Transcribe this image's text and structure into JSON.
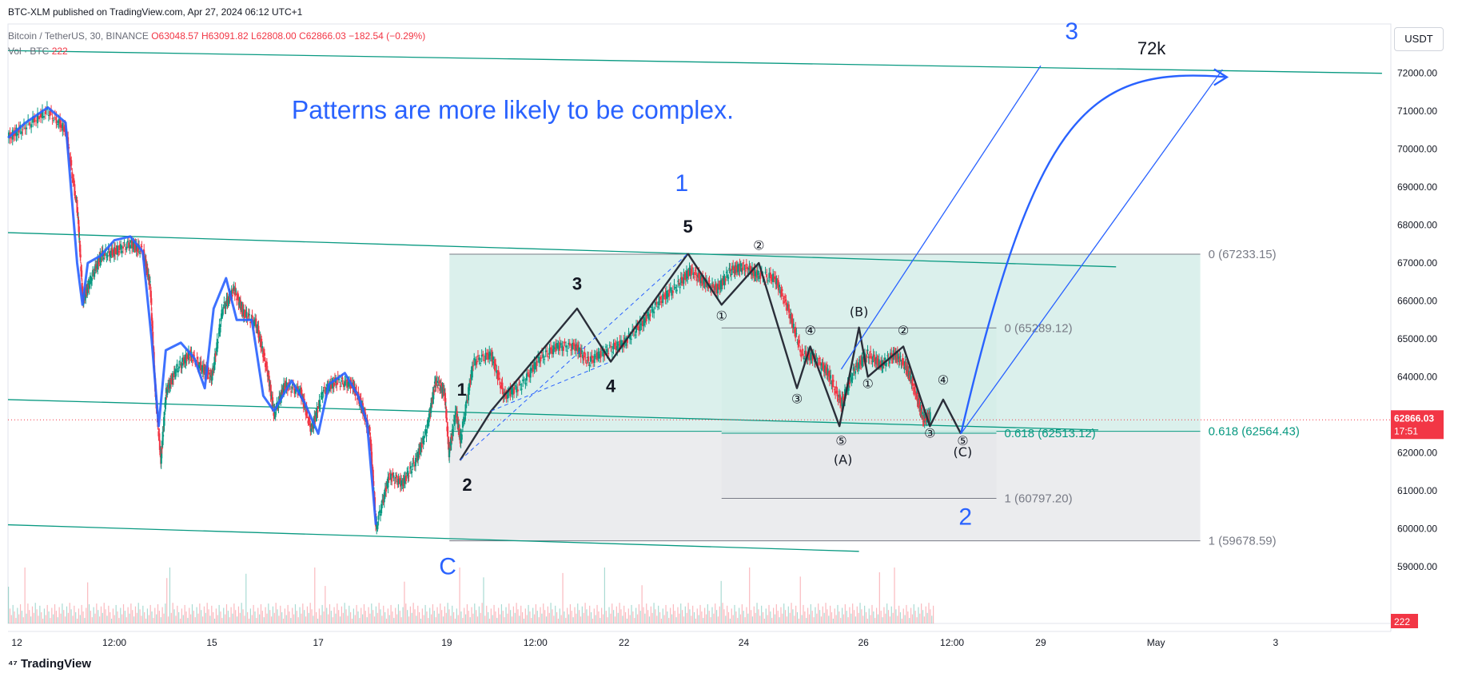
{
  "header": {
    "published": "BTC-XLM published on TradingView.com, Apr 27, 2024 06:12 UTC+1",
    "symbol": "Bitcoin / TetherUS, 30, BINANCE",
    "ohlc": {
      "o": "O63048.57",
      "h": "H63091.82",
      "l": "L62808.00",
      "c": "C62866.03",
      "chg": "−182.54 (−0.29%)"
    },
    "volume_label": "Vol · BTC",
    "volume_value": "222"
  },
  "unit_button": "USDT",
  "brand": "TradingView",
  "colors": {
    "accent_blue": "#2962ff",
    "wave_black": "#2a2e39",
    "channel": "#089981",
    "fib_fill": "#d5ede9",
    "fib_grey": "#e6e7ea",
    "candle_up": "#089981",
    "candle_down": "#f23645",
    "price_tag": "#f23645"
  },
  "chart_data": {
    "type": "candlestick",
    "title": "Bitcoin / TetherUS, 30, BINANCE",
    "ylim": [
      57500,
      73300
    ],
    "xlim": [
      0,
      15.6
    ],
    "x_ticks": [
      {
        "x": 0.1,
        "label": "12"
      },
      {
        "x": 1.2,
        "label": "12:00"
      },
      {
        "x": 2.3,
        "label": "15"
      },
      {
        "x": 3.5,
        "label": "17"
      },
      {
        "x": 4.95,
        "label": "19"
      },
      {
        "x": 5.95,
        "label": "12:00"
      },
      {
        "x": 6.95,
        "label": "22"
      },
      {
        "x": 8.3,
        "label": "24"
      },
      {
        "x": 9.65,
        "label": "26"
      },
      {
        "x": 10.65,
        "label": "12:00"
      },
      {
        "x": 11.65,
        "label": "29"
      },
      {
        "x": 12.95,
        "label": "May"
      },
      {
        "x": 14.3,
        "label": "3"
      }
    ],
    "y_ticks": [
      59000,
      60000,
      61000,
      62000,
      63000,
      64000,
      65000,
      66000,
      67000,
      68000,
      69000,
      70000,
      71000,
      72000
    ],
    "y_tick_labels": [
      "59000.00",
      "60000.00",
      "61000.00",
      "62000.00",
      "63000.00",
      "64000.00",
      "65000.00",
      "66000.00",
      "67000.00",
      "68000.00",
      "69000.00",
      "70000.00",
      "71000.00",
      "72000.00"
    ],
    "price_path": [
      [
        0,
        70300
      ],
      [
        0.2,
        70600
      ],
      [
        0.45,
        71000
      ],
      [
        0.65,
        70500
      ],
      [
        0.78,
        68400
      ],
      [
        0.84,
        66000
      ],
      [
        0.92,
        66500
      ],
      [
        1.05,
        67200
      ],
      [
        1.2,
        67300
      ],
      [
        1.38,
        67500
      ],
      [
        1.52,
        67300
      ],
      [
        1.6,
        66400
      ],
      [
        1.66,
        63500
      ],
      [
        1.72,
        61800
      ],
      [
        1.78,
        63600
      ],
      [
        1.9,
        64200
      ],
      [
        2.05,
        64600
      ],
      [
        2.2,
        64200
      ],
      [
        2.3,
        64000
      ],
      [
        2.42,
        65800
      ],
      [
        2.55,
        66300
      ],
      [
        2.65,
        65700
      ],
      [
        2.8,
        65400
      ],
      [
        2.92,
        64200
      ],
      [
        3.0,
        63000
      ],
      [
        3.12,
        63800
      ],
      [
        3.3,
        63600
      ],
      [
        3.42,
        62600
      ],
      [
        3.55,
        63600
      ],
      [
        3.7,
        63900
      ],
      [
        3.88,
        63800
      ],
      [
        3.98,
        63300
      ],
      [
        4.08,
        62500
      ],
      [
        4.15,
        60000
      ],
      [
        4.3,
        61400
      ],
      [
        4.45,
        61200
      ],
      [
        4.6,
        61800
      ],
      [
        4.72,
        62600
      ],
      [
        4.82,
        63900
      ],
      [
        4.92,
        63600
      ],
      [
        4.97,
        62000
      ],
      [
        5.05,
        63100
      ],
      [
        5.1,
        62300
      ],
      [
        5.25,
        64400
      ],
      [
        5.45,
        64600
      ],
      [
        5.6,
        63500
      ],
      [
        5.8,
        63800
      ],
      [
        6.0,
        64500
      ],
      [
        6.2,
        64800
      ],
      [
        6.4,
        64800
      ],
      [
        6.55,
        64400
      ],
      [
        6.75,
        64700
      ],
      [
        6.95,
        64900
      ],
      [
        7.15,
        65400
      ],
      [
        7.35,
        66000
      ],
      [
        7.55,
        66400
      ],
      [
        7.7,
        66800
      ],
      [
        7.85,
        66500
      ],
      [
        8.0,
        66300
      ],
      [
        8.15,
        66800
      ],
      [
        8.3,
        66900
      ],
      [
        8.45,
        66700
      ],
      [
        8.65,
        66600
      ],
      [
        8.8,
        65800
      ],
      [
        8.95,
        64600
      ],
      [
        9.1,
        64500
      ],
      [
        9.25,
        64100
      ],
      [
        9.4,
        63300
      ],
      [
        9.55,
        64200
      ],
      [
        9.7,
        64600
      ],
      [
        9.85,
        64300
      ],
      [
        10.0,
        64600
      ],
      [
        10.12,
        64300
      ],
      [
        10.22,
        63700
      ],
      [
        10.32,
        62900
      ],
      [
        10.4,
        62950
      ]
    ],
    "volume_profile": "volume bars along bottom, recent value 222",
    "last_price": {
      "value": 62866.03,
      "label": "62866.03",
      "countdown": "17:51"
    },
    "last_volume_label": "222",
    "channels": [
      {
        "from": [
          0,
          72600
        ],
        "to": [
          15.5,
          72000
        ]
      },
      {
        "from": [
          0,
          67800
        ],
        "to": [
          12.5,
          66900
        ]
      },
      {
        "from": [
          0,
          63400
        ],
        "to": [
          12.3,
          62600
        ]
      },
      {
        "from": [
          0,
          60100
        ],
        "to": [
          9.6,
          59400
        ]
      }
    ],
    "fib_large": {
      "x_range": [
        4.98,
        13.45
      ],
      "levels": [
        {
          "ratio": "0",
          "price": 67233.15,
          "label": "0 (67233.15)"
        },
        {
          "ratio": "0.618",
          "price": 62564.43,
          "label": "0.618 (62564.43)"
        },
        {
          "ratio": "1",
          "price": 59678.59,
          "label": "1 (59678.59)"
        }
      ]
    },
    "fib_small": {
      "x_range": [
        8.05,
        11.15
      ],
      "levels": [
        {
          "ratio": "0",
          "price": 65289.12,
          "label": "0 (65289.12)"
        },
        {
          "ratio": "0.618",
          "price": 62513.12,
          "label": "0.618 (62513.12)"
        },
        {
          "ratio": "1",
          "price": 60797.2,
          "label": "1 (60797.20)"
        }
      ]
    },
    "impulse_wave": {
      "points": [
        [
          5.1,
          61800
        ],
        [
          5.45,
          63100
        ],
        [
          6.42,
          65800
        ],
        [
          6.8,
          64400
        ],
        [
          7.67,
          67250
        ]
      ],
      "labels": [
        {
          "x": 5.12,
          "y": 63500,
          "text": "1"
        },
        {
          "x": 5.18,
          "y": 61000,
          "text": "2"
        },
        {
          "x": 6.42,
          "y": 66300,
          "text": "3"
        },
        {
          "x": 6.8,
          "y": 63600,
          "text": "4"
        },
        {
          "x": 7.67,
          "y": 67800,
          "text": "5"
        }
      ]
    },
    "corrective_wave": {
      "points": [
        [
          7.67,
          67250
        ],
        [
          8.05,
          65900
        ],
        [
          8.47,
          67000
        ],
        [
          8.9,
          63700
        ],
        [
          9.05,
          64800
        ],
        [
          9.38,
          62700
        ],
        [
          9.6,
          65300
        ],
        [
          9.7,
          64000
        ],
        [
          10.1,
          64800
        ],
        [
          10.4,
          62700
        ],
        [
          10.55,
          63400
        ],
        [
          10.75,
          62500
        ]
      ],
      "labels": [
        {
          "x": 8.05,
          "y": 65500,
          "text": "①"
        },
        {
          "x": 8.47,
          "y": 67350,
          "text": "②"
        },
        {
          "x": 8.9,
          "y": 63300,
          "text": "③"
        },
        {
          "x": 9.05,
          "y": 65100,
          "text": "④"
        },
        {
          "x": 9.4,
          "y": 62200,
          "text": "⑤"
        },
        {
          "x": 9.42,
          "y": 61700,
          "text": "(A)"
        },
        {
          "x": 9.6,
          "y": 65600,
          "text": "(B)"
        },
        {
          "x": 9.7,
          "y": 63700,
          "text": "①"
        },
        {
          "x": 10.1,
          "y": 65100,
          "text": "②"
        },
        {
          "x": 10.4,
          "y": 62400,
          "text": "③"
        },
        {
          "x": 10.55,
          "y": 63800,
          "text": "④"
        },
        {
          "x": 10.77,
          "y": 62200,
          "text": "⑤"
        },
        {
          "x": 10.77,
          "y": 61900,
          "text": "(C)"
        }
      ]
    },
    "projection": {
      "channel_lines": [
        {
          "from": [
            9.4,
            64200
          ],
          "to": [
            11.65,
            72200
          ]
        },
        {
          "from": [
            10.75,
            62500
          ],
          "to": [
            13.7,
            72100
          ]
        }
      ],
      "arrow_label": "72k"
    },
    "annotations": [
      {
        "x": 3.2,
        "y": 70800,
        "text": "Patterns are more likely to be complex.",
        "color": "#2962ff",
        "size": 32
      },
      {
        "x": 7.6,
        "y": 68900,
        "text": "1",
        "color": "#2962ff",
        "size": 30
      },
      {
        "x": 12.0,
        "y": 72900,
        "text": "3",
        "color": "#2962ff",
        "size": 30
      },
      {
        "x": 10.8,
        "y": 60100,
        "text": "2",
        "color": "#2962ff",
        "size": 30
      },
      {
        "x": 4.96,
        "y": 58800,
        "text": "C",
        "color": "#2962ff",
        "size": 30
      },
      {
        "x": 12.9,
        "y": 72500,
        "text": "72k",
        "color": "#131722",
        "size": 22
      }
    ]
  }
}
